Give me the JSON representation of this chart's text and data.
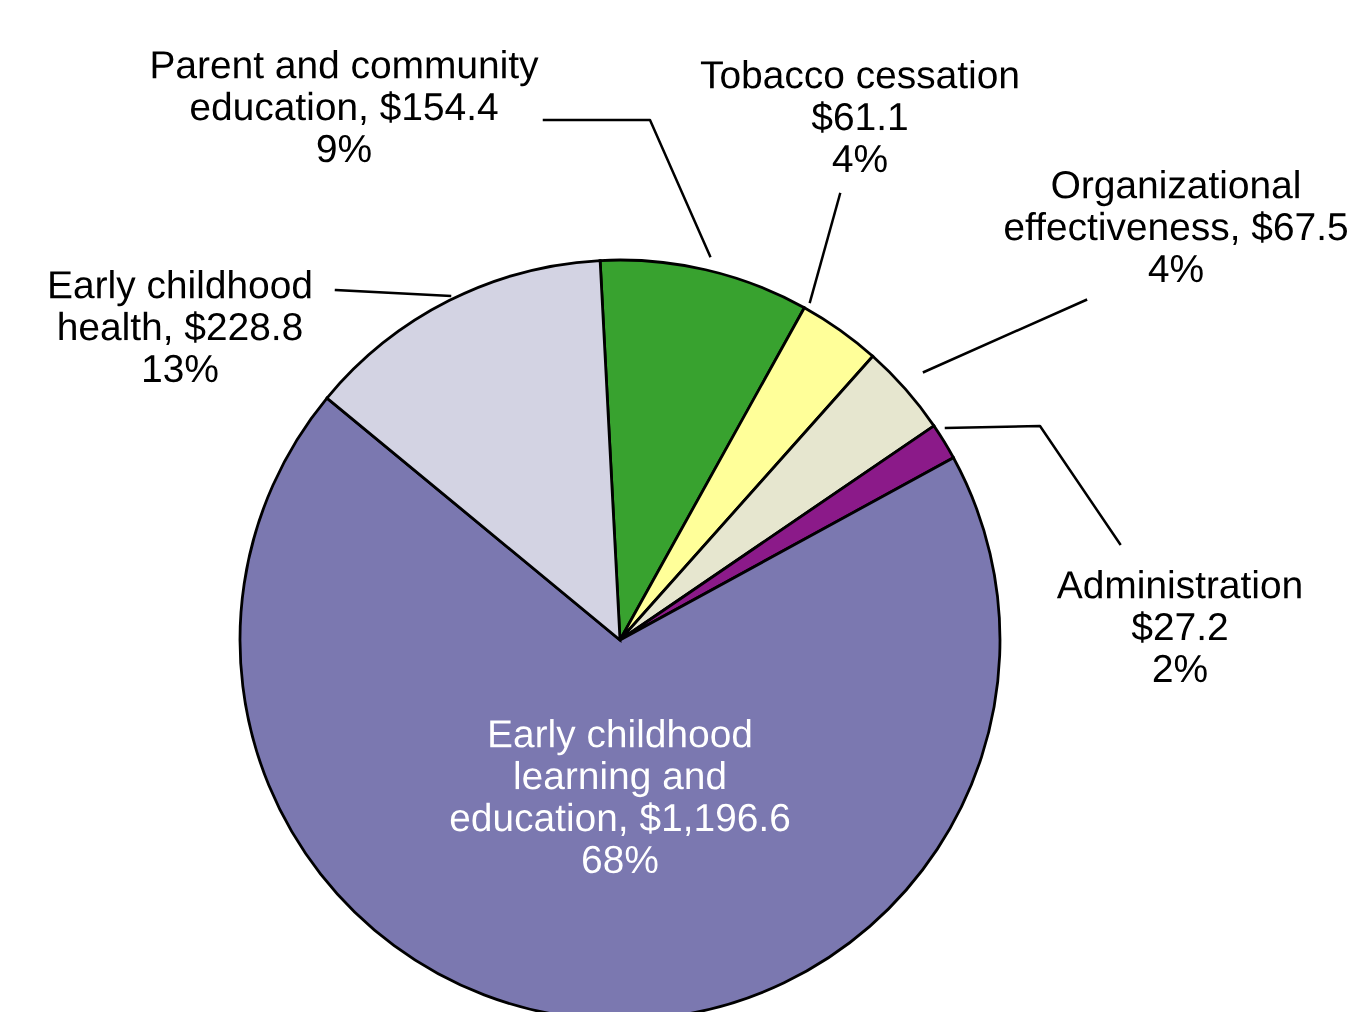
{
  "chart_data": {
    "type": "pie",
    "categories": [
      "Parent and community\neducation",
      "Tobacco cessation",
      "Organizational\neffectiveness",
      "Administration",
      "Early childhood\nlearning and\neducation",
      "Early childhood\nhealth"
    ],
    "values": [
      154.4,
      61.1,
      67.5,
      27.2,
      1196.6,
      228.8
    ],
    "colors": [
      "#38a22f",
      "#ffff99",
      "#e6e6cf",
      "#8b1a89",
      "#7b78b0",
      "#d3d3e3"
    ],
    "value_labels": [
      "$154.4\n9%",
      "$61.1\n4%",
      "$67.5\n4%",
      "$27.2\n2%",
      "$1,196.6\n68%",
      "$228.8\n13%"
    ],
    "legend": false
  }
}
